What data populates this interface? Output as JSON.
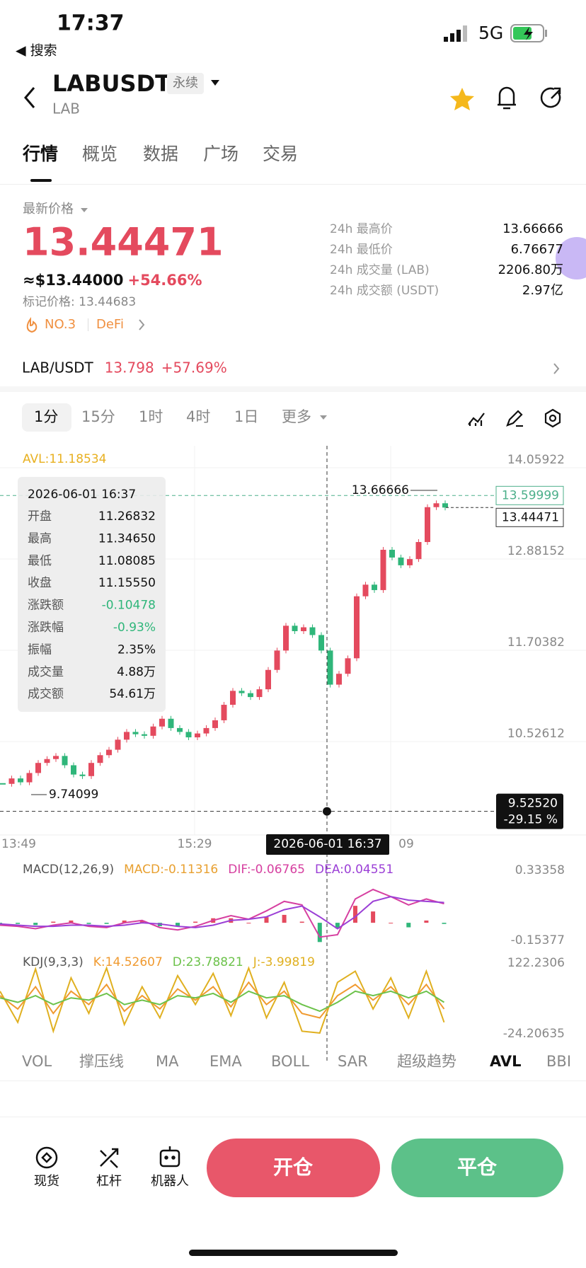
{
  "status_bar": {
    "time": "17:37",
    "back_label": "◀ 搜索",
    "network": "5G"
  },
  "header": {
    "symbol": "LABUSDT",
    "contract_tag": "永续",
    "base": "LAB"
  },
  "tabs": [
    "行情",
    "概览",
    "数据",
    "广场",
    "交易"
  ],
  "price": {
    "label": "最新价格",
    "last": "13.44471",
    "usd": "≈$13.44000",
    "change": "+54.66%",
    "mark_price": "标记价格: 13.44683",
    "rank": "NO.3",
    "sector": "DeFi"
  },
  "stats": [
    {
      "label": "24h 最高价",
      "value": "13.66666"
    },
    {
      "label": "24h 最低价",
      "value": "6.76677"
    },
    {
      "label": "24h 成交量 (LAB)",
      "value": "2206.80万"
    },
    {
      "label": "24h 成交额 (USDT)",
      "value": "2.97亿"
    }
  ],
  "spot": {
    "pair": "LAB/USDT",
    "price": "13.798",
    "change": "+57.69%"
  },
  "intervals": [
    "1分",
    "15分",
    "1时",
    "4时",
    "1日",
    "更多"
  ],
  "chart": {
    "avl_label": "AVL:11.18534",
    "yticks": [
      14.05922,
      12.88152,
      11.70382,
      10.52612
    ],
    "x_labels": [
      "13:49",
      "15:29",
      "09"
    ],
    "max_price": 13.66666,
    "min_price": 9.74099,
    "last_price": 13.44471,
    "ref_price": 13.59999,
    "cursor_price": {
      "value": 9.5252,
      "label": "9.52520"
    },
    "cursor_change": "-29.15 %",
    "cursor_time": "2026-06-01 16:37",
    "closes": [
      9.88,
      9.95,
      9.9,
      10.02,
      10.15,
      10.2,
      10.24,
      10.12,
      10.0,
      9.98,
      10.15,
      10.25,
      10.32,
      10.45,
      10.55,
      10.52,
      10.5,
      10.62,
      10.72,
      10.6,
      10.55,
      10.48,
      10.53,
      10.6,
      10.7,
      10.9,
      11.08,
      11.05,
      11.0,
      11.1,
      11.35,
      11.6,
      11.92,
      11.85,
      11.9,
      11.8,
      11.6,
      11.16,
      11.3,
      11.5,
      12.3,
      12.45,
      12.38,
      12.9,
      12.8,
      12.7,
      12.78,
      13.0,
      13.45,
      13.5,
      13.44471
    ],
    "tooltip": {
      "date": "2026-06-01 16:37",
      "rows": [
        [
          "开盘",
          "11.26832"
        ],
        [
          "最高",
          "11.34650"
        ],
        [
          "最低",
          "11.08085"
        ],
        [
          "收盘",
          "11.15550"
        ],
        [
          "涨跌额",
          "-0.10478"
        ],
        [
          "涨跌幅",
          "-0.93%"
        ],
        [
          "振幅",
          "2.35%"
        ],
        [
          "成交量",
          "4.88万"
        ],
        [
          "成交额",
          "54.61万"
        ]
      ]
    }
  },
  "macd": {
    "title": "MACD(12,26,9)",
    "macd": "MACD:-0.11316",
    "dif": "DIF:-0.06765",
    "dea": "DEA:0.04551",
    "ylim": [
      -0.15377,
      0.33358
    ],
    "dif_values": [
      -0.02,
      -0.03,
      -0.05,
      -0.02,
      0.0,
      -0.03,
      -0.04,
      0.0,
      0.02,
      -0.04,
      -0.06,
      -0.03,
      0.02,
      0.06,
      0.03,
      0.1,
      0.18,
      0.15,
      -0.12,
      -0.1,
      0.2,
      0.28,
      0.22,
      0.15,
      0.2,
      0.16
    ],
    "dea_values": [
      -0.01,
      -0.02,
      -0.03,
      -0.03,
      -0.02,
      -0.02,
      -0.03,
      -0.02,
      0.0,
      -0.01,
      -0.03,
      -0.04,
      -0.02,
      0.02,
      0.03,
      0.05,
      0.11,
      0.14,
      0.05,
      -0.05,
      0.05,
      0.18,
      0.22,
      0.19,
      0.18,
      0.17
    ]
  },
  "kdj": {
    "title": "KDJ(9,3,3)",
    "k": "K:14.52607",
    "d": "D:23.78821",
    "j": "J:-3.99819",
    "ylim": [
      -24.20635,
      122.2306
    ],
    "k_values": [
      60,
      30,
      80,
      20,
      70,
      40,
      85,
      25,
      60,
      30,
      75,
      50,
      80,
      35,
      90,
      40,
      70,
      20,
      10,
      60,
      85,
      50,
      80,
      40,
      85,
      30
    ],
    "d_values": [
      55,
      45,
      60,
      40,
      55,
      50,
      65,
      40,
      50,
      40,
      60,
      55,
      65,
      45,
      70,
      55,
      60,
      40,
      25,
      45,
      70,
      60,
      70,
      55,
      70,
      45
    ],
    "j_values": [
      70,
      0,
      120,
      -20,
      100,
      20,
      122,
      -5,
      80,
      10,
      105,
      40,
      110,
      15,
      122,
      10,
      90,
      -20,
      -24,
      90,
      115,
      30,
      100,
      10,
      115,
      0
    ]
  },
  "indicators": [
    "VOL",
    "撑压线",
    "MA",
    "EMA",
    "BOLL",
    "SAR",
    "超级趋势",
    "AVL",
    "BBI"
  ],
  "bottom": {
    "nav": [
      "现货",
      "杠杆",
      "机器人"
    ],
    "open": "开仓",
    "close": "平仓"
  }
}
